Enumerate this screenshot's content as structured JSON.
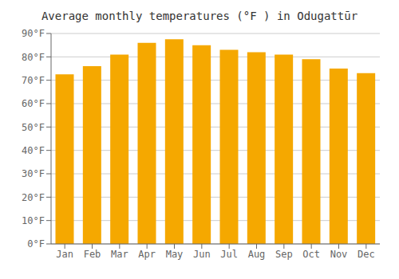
{
  "chart_data": {
    "type": "bar",
    "title": "Average monthly temperatures (°F ) in Odugattūr",
    "categories": [
      "Jan",
      "Feb",
      "Mar",
      "Apr",
      "May",
      "Jun",
      "Jul",
      "Aug",
      "Sep",
      "Oct",
      "Nov",
      "Dec"
    ],
    "values": [
      72.5,
      76.0,
      81.0,
      86.0,
      87.5,
      85.0,
      83.0,
      82.0,
      81.0,
      79.0,
      75.0,
      73.0
    ],
    "color": "#F5A800",
    "ylim": [
      0,
      90
    ],
    "yticks": [
      {
        "value": 0,
        "label": "0°F"
      },
      {
        "value": 10,
        "label": "10°F"
      },
      {
        "value": 20,
        "label": "20°F"
      },
      {
        "value": 30,
        "label": "30°F"
      },
      {
        "value": 40,
        "label": "40°F"
      },
      {
        "value": 50,
        "label": "50°F"
      },
      {
        "value": 60,
        "label": "60°F"
      },
      {
        "value": 70,
        "label": "70°F"
      },
      {
        "value": 80,
        "label": "80°F"
      },
      {
        "value": 90,
        "label": "90°F"
      }
    ],
    "grid": true
  }
}
